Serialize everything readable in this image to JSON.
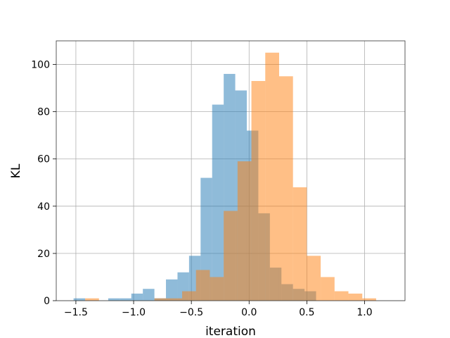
{
  "chart_data": {
    "type": "histogram",
    "xlabel": "iteration",
    "ylabel": "KL",
    "xlim": [
      -1.67,
      1.35
    ],
    "ylim": [
      0,
      110
    ],
    "grid": true,
    "x_ticks": [
      -1.5,
      -1.0,
      -0.5,
      0.0,
      0.5,
      1.0
    ],
    "x_tick_labels": [
      "−1.5",
      "−1.0",
      "−0.5",
      "0.0",
      "0.5",
      "1.0"
    ],
    "y_ticks": [
      0,
      20,
      40,
      60,
      80,
      100
    ],
    "y_tick_labels": [
      "0",
      "20",
      "40",
      "60",
      "80",
      "100"
    ],
    "series": [
      {
        "color": "#1f77b4",
        "opacity": 0.5,
        "bin_edges": [
          -1.52,
          -1.42,
          -1.32,
          -1.22,
          -1.12,
          -1.02,
          -0.92,
          -0.82,
          -0.72,
          -0.62,
          -0.52,
          -0.42,
          -0.32,
          -0.22,
          -0.12,
          -0.02,
          0.08,
          0.18,
          0.28,
          0.38,
          0.48,
          0.58
        ],
        "counts": [
          1,
          0,
          0,
          1,
          1,
          3,
          5,
          1,
          9,
          12,
          19,
          52,
          83,
          96,
          89,
          72,
          37,
          14,
          7,
          5,
          4
        ]
      },
      {
        "color": "#ff7f0e",
        "opacity": 0.5,
        "bin_edges": [
          -1.42,
          -1.3,
          -1.18,
          -1.06,
          -0.94,
          -0.82,
          -0.7,
          -0.58,
          -0.46,
          -0.34,
          -0.22,
          -0.1,
          0.02,
          0.14,
          0.26,
          0.38,
          0.5,
          0.62,
          0.74,
          0.86,
          0.98,
          1.1,
          1.22
        ],
        "counts": [
          1,
          0,
          0,
          0,
          0,
          1,
          1,
          4,
          13,
          10,
          38,
          59,
          93,
          105,
          95,
          48,
          19,
          10,
          4,
          3,
          1,
          0,
          2
        ]
      }
    ]
  }
}
